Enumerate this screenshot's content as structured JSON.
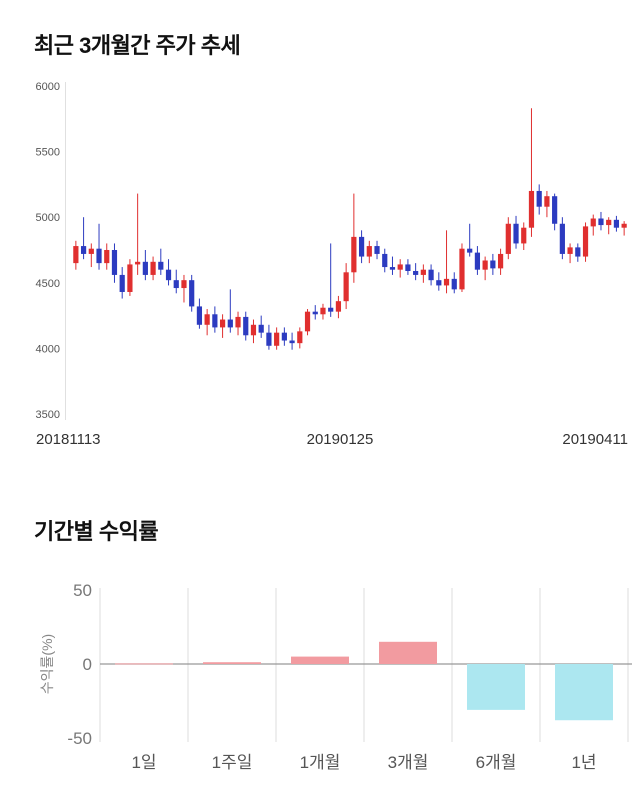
{
  "price_section": {
    "title": "최근 3개월간 주가 추세"
  },
  "returns_section": {
    "title": "기간별 수익률"
  },
  "chart_data": [
    {
      "type": "candlestick",
      "title": "최근 3개월간 주가 추세",
      "ylim": [
        3500,
        6000
      ],
      "yticks": [
        6000,
        5500,
        5000,
        4500,
        4000,
        3500
      ],
      "xticks": [
        "20181113",
        "20190125",
        "20190411"
      ],
      "up_color": "#e02f2f",
      "down_color": "#2c3bc0",
      "tick_color": "#555555",
      "date_color": "#333333",
      "axis_color": "#e0e0e0",
      "candle_format": [
        "open",
        "high",
        "low",
        "close"
      ],
      "candles": [
        [
          4650,
          4820,
          4600,
          4780
        ],
        [
          4780,
          5000,
          4680,
          4720
        ],
        [
          4720,
          4800,
          4620,
          4760
        ],
        [
          4760,
          4950,
          4600,
          4650
        ],
        [
          4650,
          4800,
          4600,
          4750
        ],
        [
          4750,
          4800,
          4500,
          4560
        ],
        [
          4560,
          4620,
          4380,
          4430
        ],
        [
          4430,
          4680,
          4400,
          4640
        ],
        [
          4640,
          5180,
          4560,
          4660
        ],
        [
          4660,
          4750,
          4520,
          4560
        ],
        [
          4560,
          4700,
          4520,
          4660
        ],
        [
          4660,
          4760,
          4560,
          4600
        ],
        [
          4600,
          4680,
          4480,
          4520
        ],
        [
          4520,
          4600,
          4420,
          4460
        ],
        [
          4460,
          4560,
          4350,
          4520
        ],
        [
          4520,
          4560,
          4280,
          4320
        ],
        [
          4320,
          4380,
          4150,
          4180
        ],
        [
          4180,
          4300,
          4100,
          4260
        ],
        [
          4260,
          4320,
          4120,
          4160
        ],
        [
          4160,
          4260,
          4080,
          4220
        ],
        [
          4220,
          4450,
          4120,
          4160
        ],
        [
          4160,
          4280,
          4100,
          4240
        ],
        [
          4240,
          4280,
          4060,
          4100
        ],
        [
          4100,
          4220,
          4040,
          4180
        ],
        [
          4180,
          4250,
          4080,
          4120
        ],
        [
          4120,
          4180,
          3990,
          4020
        ],
        [
          4020,
          4160,
          3990,
          4120
        ],
        [
          4120,
          4160,
          4020,
          4060
        ],
        [
          4060,
          4120,
          3990,
          4040
        ],
        [
          4040,
          4160,
          4000,
          4130
        ],
        [
          4130,
          4300,
          4100,
          4280
        ],
        [
          4280,
          4330,
          4220,
          4260
        ],
        [
          4260,
          4340,
          4220,
          4310
        ],
        [
          4310,
          4800,
          4240,
          4280
        ],
        [
          4280,
          4400,
          4230,
          4360
        ],
        [
          4360,
          4650,
          4300,
          4580
        ],
        [
          4580,
          5180,
          4500,
          4850
        ],
        [
          4850,
          4900,
          4650,
          4700
        ],
        [
          4700,
          4820,
          4650,
          4780
        ],
        [
          4780,
          4820,
          4680,
          4720
        ],
        [
          4720,
          4760,
          4580,
          4620
        ],
        [
          4620,
          4700,
          4560,
          4600
        ],
        [
          4600,
          4680,
          4540,
          4640
        ],
        [
          4640,
          4680,
          4560,
          4590
        ],
        [
          4590,
          4650,
          4520,
          4560
        ],
        [
          4560,
          4640,
          4500,
          4600
        ],
        [
          4600,
          4640,
          4480,
          4520
        ],
        [
          4520,
          4580,
          4440,
          4480
        ],
        [
          4480,
          4900,
          4420,
          4530
        ],
        [
          4530,
          4580,
          4420,
          4450
        ],
        [
          4450,
          4800,
          4430,
          4760
        ],
        [
          4760,
          4950,
          4700,
          4730
        ],
        [
          4730,
          4780,
          4560,
          4600
        ],
        [
          4600,
          4700,
          4520,
          4670
        ],
        [
          4670,
          4720,
          4560,
          4610
        ],
        [
          4610,
          4760,
          4560,
          4720
        ],
        [
          4720,
          5000,
          4680,
          4950
        ],
        [
          4950,
          5010,
          4760,
          4800
        ],
        [
          4800,
          4960,
          4750,
          4920
        ],
        [
          4920,
          5830,
          4850,
          5200
        ],
        [
          5200,
          5250,
          5020,
          5080
        ],
        [
          5080,
          5200,
          5000,
          5160
        ],
        [
          5160,
          5180,
          4900,
          4950
        ],
        [
          4950,
          5000,
          4680,
          4720
        ],
        [
          4720,
          4800,
          4650,
          4770
        ],
        [
          4770,
          4800,
          4660,
          4700
        ],
        [
          4700,
          4960,
          4660,
          4930
        ],
        [
          4930,
          5020,
          4860,
          4990
        ],
        [
          4990,
          5040,
          4900,
          4940
        ],
        [
          4940,
          5000,
          4870,
          4980
        ],
        [
          4980,
          5010,
          4890,
          4920
        ],
        [
          4920,
          4970,
          4860,
          4950
        ]
      ]
    },
    {
      "type": "bar",
      "title": "기간별 수익률",
      "categories": [
        "1일",
        "1주일",
        "1개월",
        "3개월",
        "6개월",
        "1년"
      ],
      "values": [
        0.4,
        1.2,
        5,
        15,
        -31,
        -38
      ],
      "ylabel": "수익률(%)",
      "ylim": [
        -50,
        50
      ],
      "yticks": [
        50,
        0,
        -50
      ],
      "positive_color": "#f29ba0",
      "negative_color": "#ace7f0",
      "grid_color": "#dddddd",
      "zero_line_color": "#999999",
      "tick_color": "#777777",
      "category_color": "#555555",
      "ylabel_color": "#888888",
      "grid": true,
      "legend": "none"
    }
  ]
}
